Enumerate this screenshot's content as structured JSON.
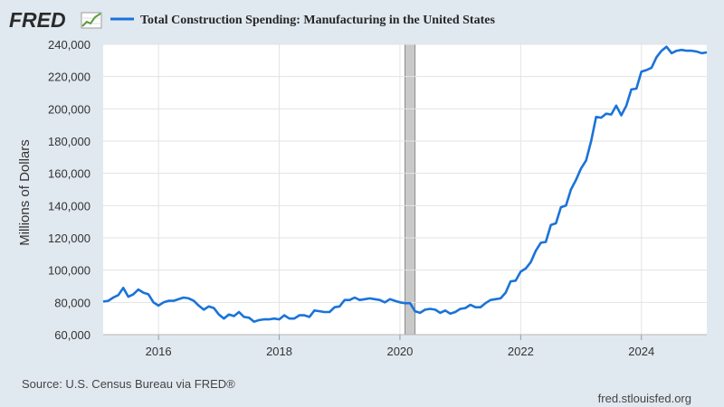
{
  "header": {
    "logo_text": "FRED",
    "logo_icon": "chart-trend-icon",
    "legend_label": "Total Construction Spending: Manufacturing in the United States"
  },
  "footer": {
    "source": "Source: U.S. Census Bureau via FRED®",
    "site": "fred.stlouisfed.org"
  },
  "colors": {
    "line": "#1a73d9",
    "background": "#e1e9f0",
    "plot": "#ffffff",
    "grid": "#e3e3e3",
    "recession": "#c9c9c9"
  },
  "chart_data": {
    "type": "line",
    "title": "Total Construction Spending: Manufacturing in the United States",
    "xlabel": "",
    "ylabel": "Millions of Dollars",
    "xlim": [
      "2015-02-01",
      "2025-02-01"
    ],
    "ylim": [
      60000,
      240000
    ],
    "y_ticks": [
      60000,
      80000,
      100000,
      120000,
      140000,
      160000,
      180000,
      200000,
      220000,
      240000
    ],
    "y_tick_labels": [
      "60,000",
      "80,000",
      "100,000",
      "120,000",
      "140,000",
      "160,000",
      "180,000",
      "200,000",
      "220,000",
      "240,000"
    ],
    "x_ticks": [
      "2016-01-01",
      "2018-01-01",
      "2020-01-01",
      "2022-01-01",
      "2024-01-01"
    ],
    "x_tick_labels": [
      "2016",
      "2018",
      "2020",
      "2022",
      "2024"
    ],
    "grid": true,
    "legend": "top",
    "recessions": [
      {
        "start": "2020-02-01",
        "end": "2020-04-01"
      }
    ],
    "series": [
      {
        "name": "Total Construction Spending: Manufacturing in the United States",
        "x": [
          "2015-02",
          "2015-03",
          "2015-04",
          "2015-05",
          "2015-06",
          "2015-07",
          "2015-08",
          "2015-09",
          "2015-10",
          "2015-11",
          "2015-12",
          "2016-01",
          "2016-02",
          "2016-03",
          "2016-04",
          "2016-05",
          "2016-06",
          "2016-07",
          "2016-08",
          "2016-09",
          "2016-10",
          "2016-11",
          "2016-12",
          "2017-01",
          "2017-02",
          "2017-03",
          "2017-04",
          "2017-05",
          "2017-06",
          "2017-07",
          "2017-08",
          "2017-09",
          "2017-10",
          "2017-11",
          "2017-12",
          "2018-01",
          "2018-02",
          "2018-03",
          "2018-04",
          "2018-05",
          "2018-06",
          "2018-07",
          "2018-08",
          "2018-09",
          "2018-10",
          "2018-11",
          "2018-12",
          "2019-01",
          "2019-02",
          "2019-03",
          "2019-04",
          "2019-05",
          "2019-06",
          "2019-07",
          "2019-08",
          "2019-09",
          "2019-10",
          "2019-11",
          "2019-12",
          "2020-01",
          "2020-02",
          "2020-03",
          "2020-04",
          "2020-05",
          "2020-06",
          "2020-07",
          "2020-08",
          "2020-09",
          "2020-10",
          "2020-11",
          "2020-12",
          "2021-01",
          "2021-02",
          "2021-03",
          "2021-04",
          "2021-05",
          "2021-06",
          "2021-07",
          "2021-08",
          "2021-09",
          "2021-10",
          "2021-11",
          "2021-12",
          "2022-01",
          "2022-02",
          "2022-03",
          "2022-04",
          "2022-05",
          "2022-06",
          "2022-07",
          "2022-08",
          "2022-09",
          "2022-10",
          "2022-11",
          "2022-12",
          "2023-01",
          "2023-02",
          "2023-03",
          "2023-04",
          "2023-05",
          "2023-06",
          "2023-07",
          "2023-08",
          "2023-09",
          "2023-10",
          "2023-11",
          "2023-12",
          "2024-01",
          "2024-02",
          "2024-03",
          "2024-04",
          "2024-05",
          "2024-06",
          "2024-07",
          "2024-08",
          "2024-09",
          "2024-10",
          "2024-11",
          "2024-12",
          "2025-01",
          "2025-02"
        ],
        "values": [
          80500,
          81000,
          83000,
          84500,
          89000,
          83500,
          85000,
          88000,
          86000,
          85000,
          80000,
          78000,
          80000,
          81000,
          81000,
          82000,
          83000,
          82500,
          81000,
          78000,
          75500,
          77500,
          76500,
          72500,
          70000,
          72500,
          71500,
          74000,
          71000,
          70500,
          68000,
          69000,
          69500,
          69500,
          70000,
          69500,
          72000,
          70000,
          70000,
          72000,
          72000,
          71000,
          75000,
          74500,
          74000,
          74000,
          77000,
          77500,
          81500,
          81500,
          83000,
          81500,
          82000,
          82500,
          82000,
          81500,
          80000,
          82000,
          81000,
          80000,
          79500,
          79500,
          74500,
          73500,
          75500,
          76000,
          75500,
          73500,
          75000,
          73000,
          74000,
          76000,
          76500,
          78500,
          77000,
          77000,
          79500,
          81500,
          82000,
          82500,
          86000,
          93000,
          93500,
          99000,
          101000,
          105000,
          112000,
          117000,
          117500,
          128000,
          129000,
          139000,
          140000,
          150000,
          156000,
          163000,
          168000,
          180000,
          195000,
          194500,
          197000,
          196500,
          202000,
          196000,
          202000,
          212000,
          212500,
          223000,
          224000,
          225500,
          232000,
          236000,
          238500,
          234500,
          236000,
          236500,
          236000,
          236000,
          235500,
          234500,
          235000
        ]
      }
    ]
  }
}
